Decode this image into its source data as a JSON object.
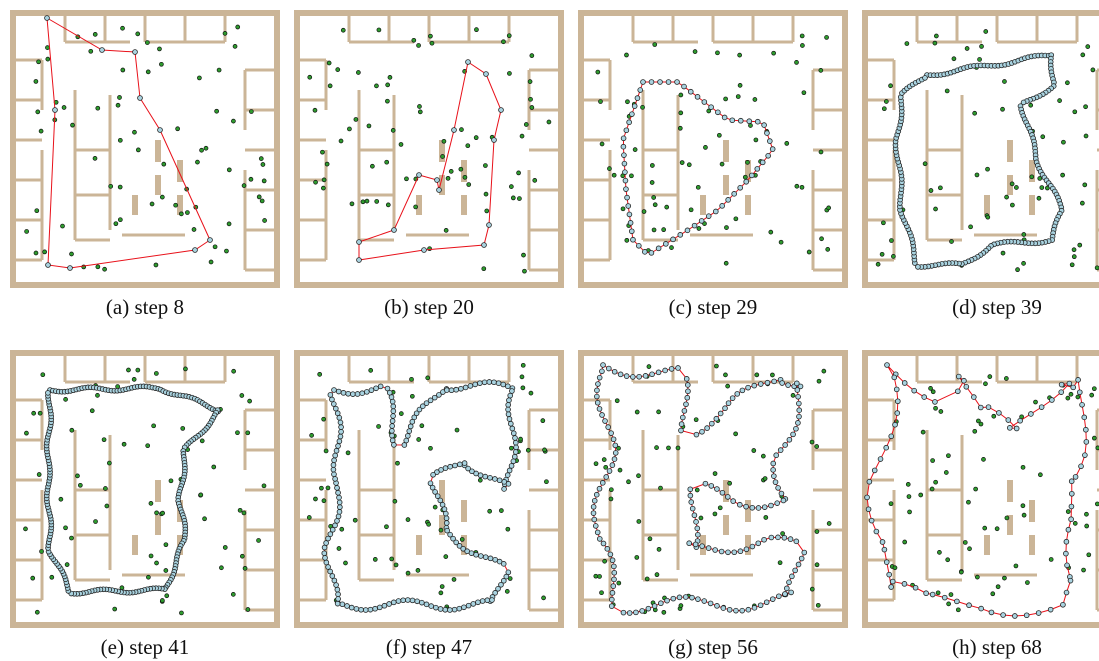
{
  "panels": [
    {
      "caption": "(a) step 8"
    },
    {
      "caption": "(b) step 20"
    },
    {
      "caption": "(c) step 29"
    },
    {
      "caption": "(d) step 39"
    },
    {
      "caption": "(e) step 41"
    },
    {
      "caption": "(f) step 47"
    },
    {
      "caption": "(g) step 56"
    },
    {
      "caption": "(h) step 68"
    }
  ]
}
